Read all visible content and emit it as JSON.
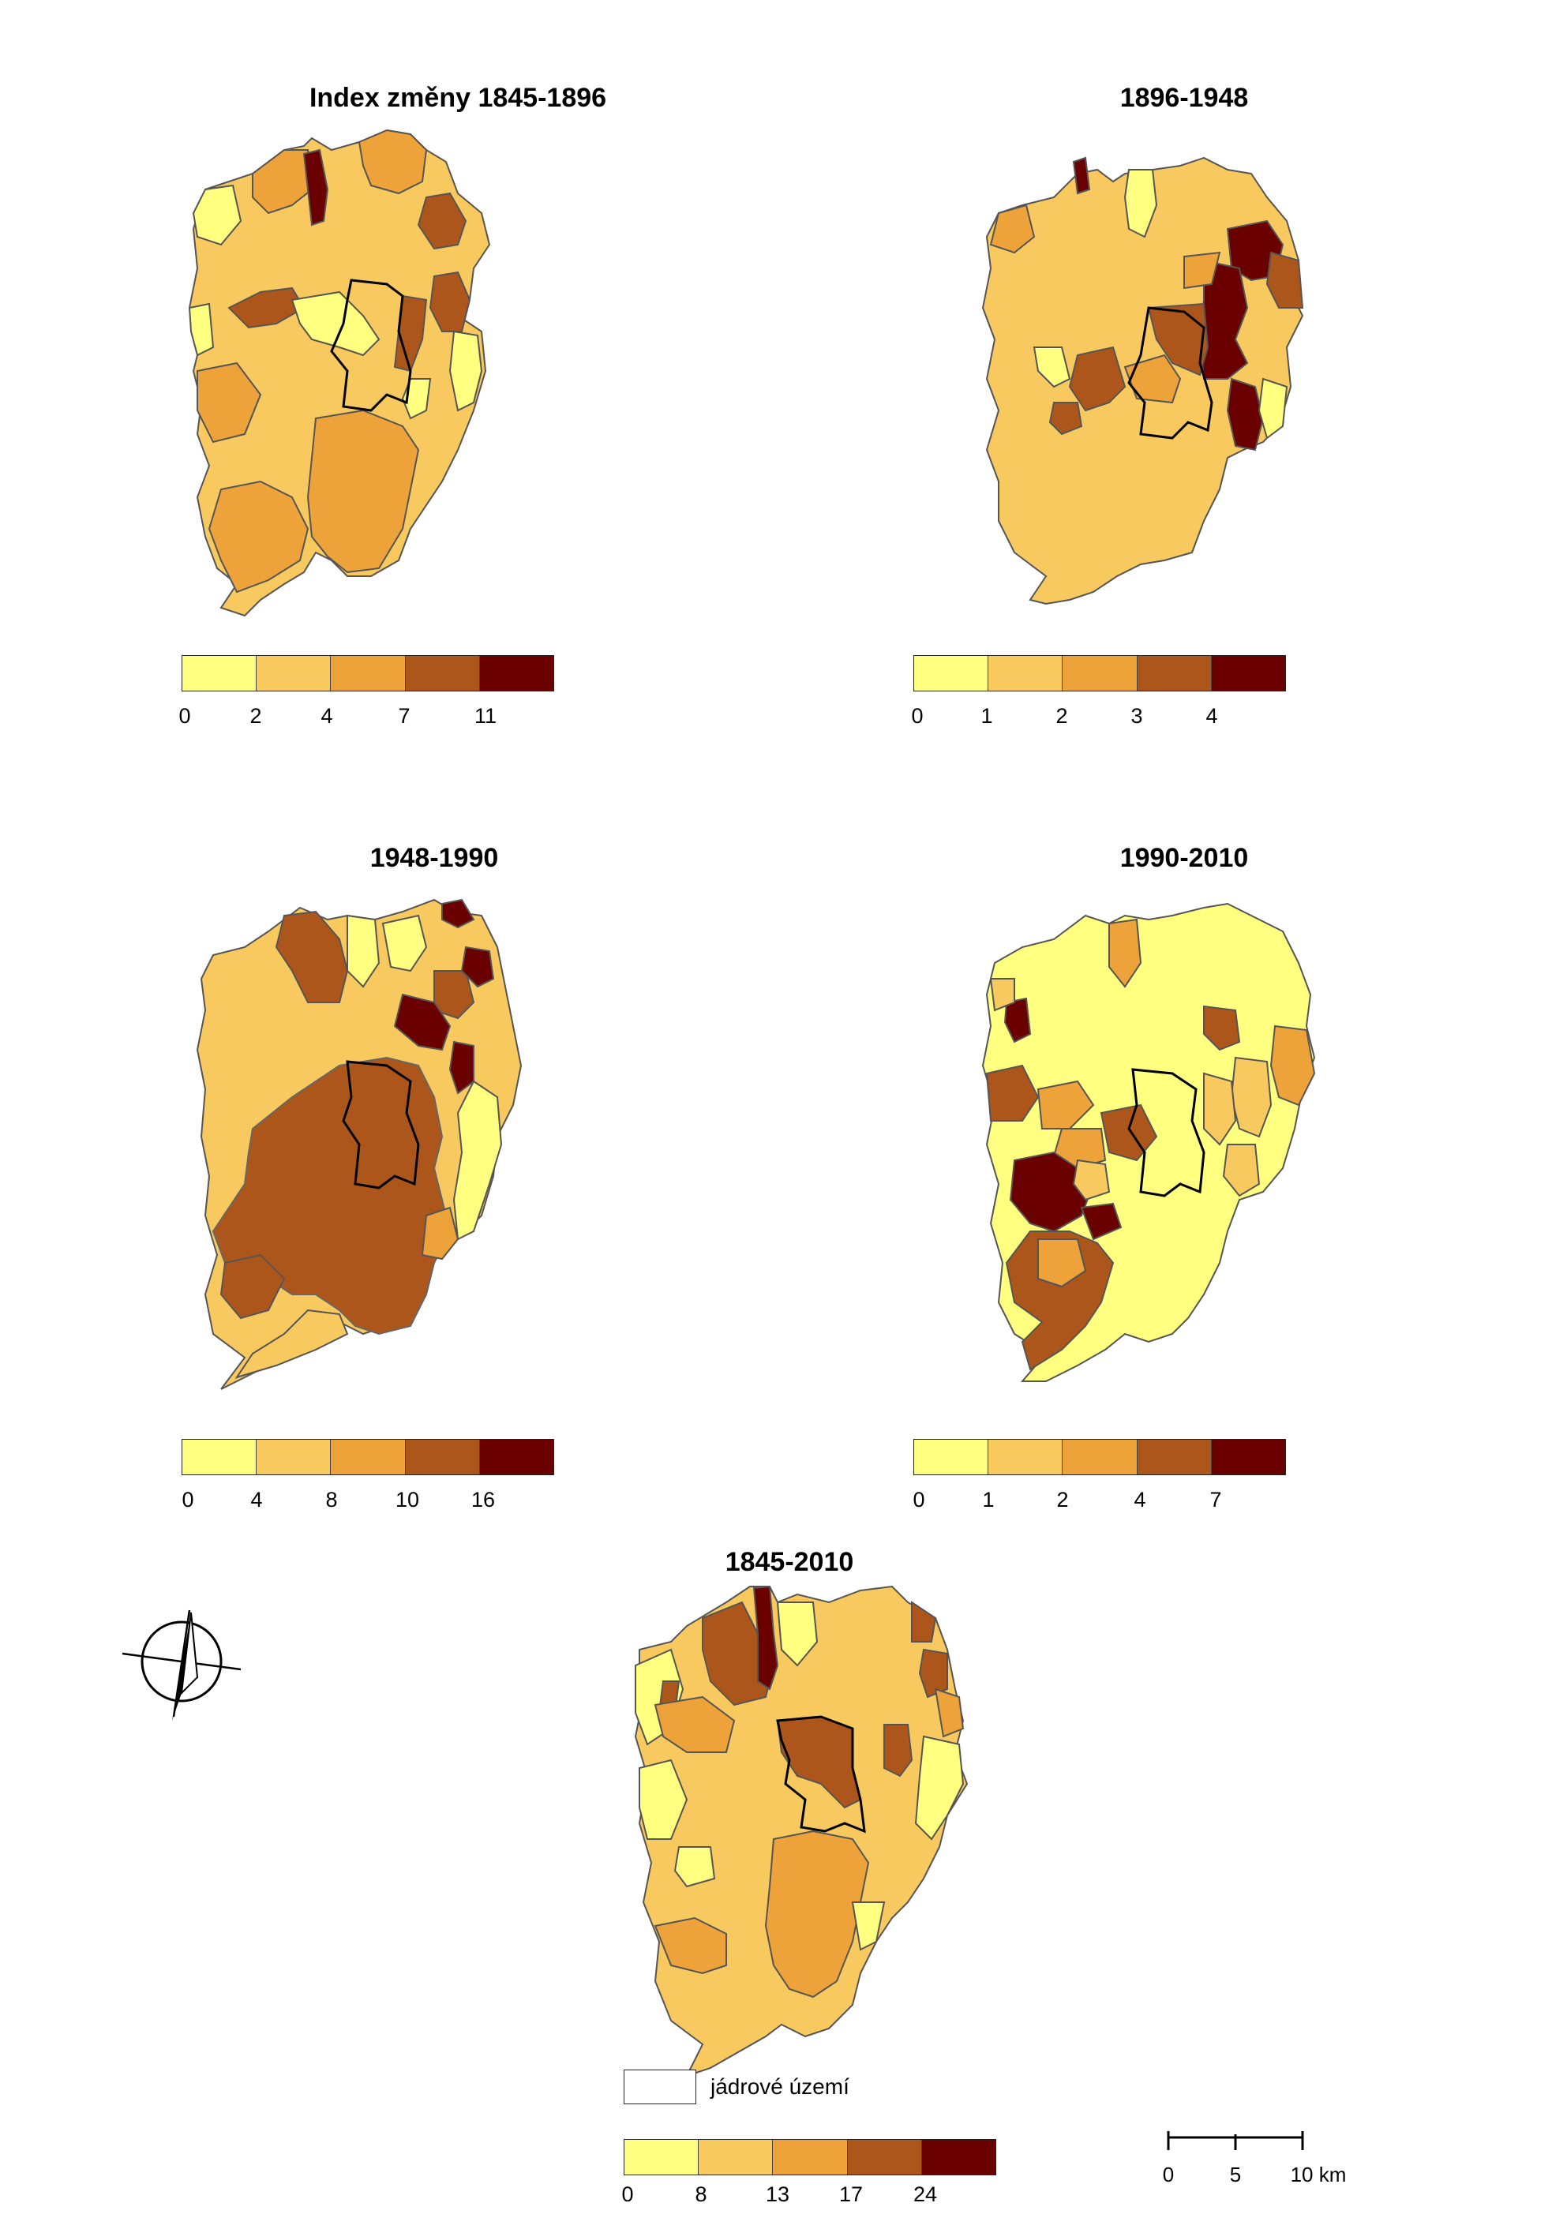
{
  "colors": [
    "#ffff80",
    "#f8c95f",
    "#eda23a",
    "#ad561b",
    "#6b0000"
  ],
  "panels": [
    {
      "title": "Index změny 1845-1896",
      "ticks": [
        "0",
        "2",
        "4",
        "7",
        "11"
      ]
    },
    {
      "title": "1896-1948",
      "ticks": [
        "0",
        "1",
        "2",
        "3",
        "4"
      ]
    },
    {
      "title": "1948-1990",
      "ticks": [
        "0",
        "4",
        "8",
        "10",
        "16"
      ]
    },
    {
      "title": "1990-2010",
      "ticks": [
        "0",
        "1",
        "2",
        "4",
        "7"
      ]
    },
    {
      "title": "1845-2010",
      "ticks": [
        "0",
        "8",
        "13",
        "17",
        "24"
      ]
    }
  ],
  "core_legend": {
    "label": "jádrové území"
  },
  "scale": {
    "ticks": [
      "0",
      "5",
      "10 km"
    ]
  },
  "icons": {
    "north_arrow": "north-arrow-icon"
  }
}
